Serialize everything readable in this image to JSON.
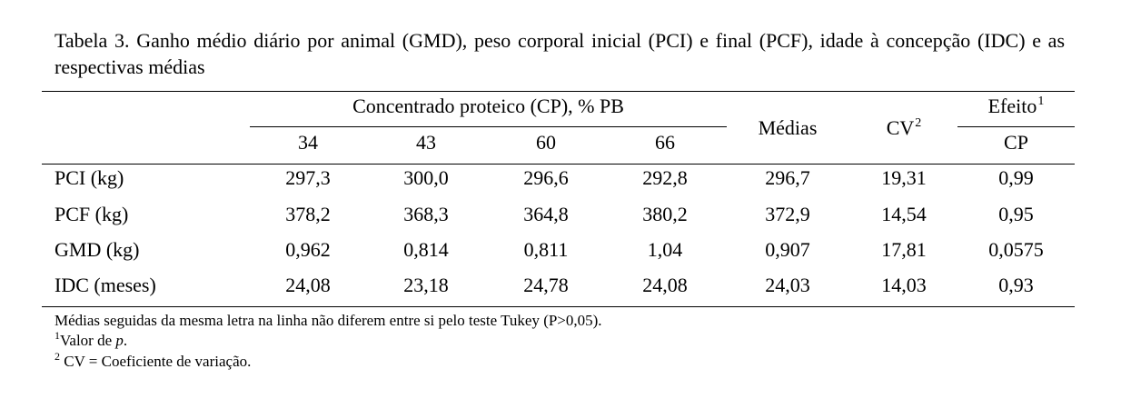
{
  "caption": "Tabela 3. Ganho médio diário por animal (GMD), peso corporal inicial (PCI) e final (PCF), idade à concepção (IDC) e as respectivas médias",
  "header": {
    "group_label": "Concentrado proteico (CP), % PB",
    "levels": [
      "34",
      "43",
      "60",
      "66"
    ],
    "medias": "Médias",
    "cv": "CV",
    "cv_sup": "2",
    "efeito": "Efeito",
    "efeito_sup": "1",
    "efeito_sub": "CP"
  },
  "rows": [
    {
      "label": "PCI (kg)",
      "values": [
        "297,3",
        "300,0",
        "296,6",
        "292,8"
      ],
      "media": "296,7",
      "cv": "19,31",
      "efeito": "0,99"
    },
    {
      "label": "PCF (kg)",
      "values": [
        "378,2",
        "368,3",
        "364,8",
        "380,2"
      ],
      "media": "372,9",
      "cv": "14,54",
      "efeito": "0,95"
    },
    {
      "label": "GMD (kg)",
      "values": [
        "0,962",
        "0,814",
        "0,811",
        "1,04"
      ],
      "media": "0,907",
      "cv": "17,81",
      "efeito": "0,0575"
    },
    {
      "label": "IDC (meses)",
      "values": [
        "24,08",
        "23,18",
        "24,78",
        "24,08"
      ],
      "media": "24,03",
      "cv": "14,03",
      "efeito": "0,93"
    }
  ],
  "footnotes": {
    "note": "Médias seguidas da mesma letra na linha não diferem entre si pelo teste Tukey (P>0,05).",
    "fn1_mark": "1",
    "fn1_text": "Valor de ",
    "fn1_italic": "p",
    "fn1_end": ".",
    "fn2_mark": "2",
    "fn2_text": " CV =  Coeficiente de variação."
  }
}
